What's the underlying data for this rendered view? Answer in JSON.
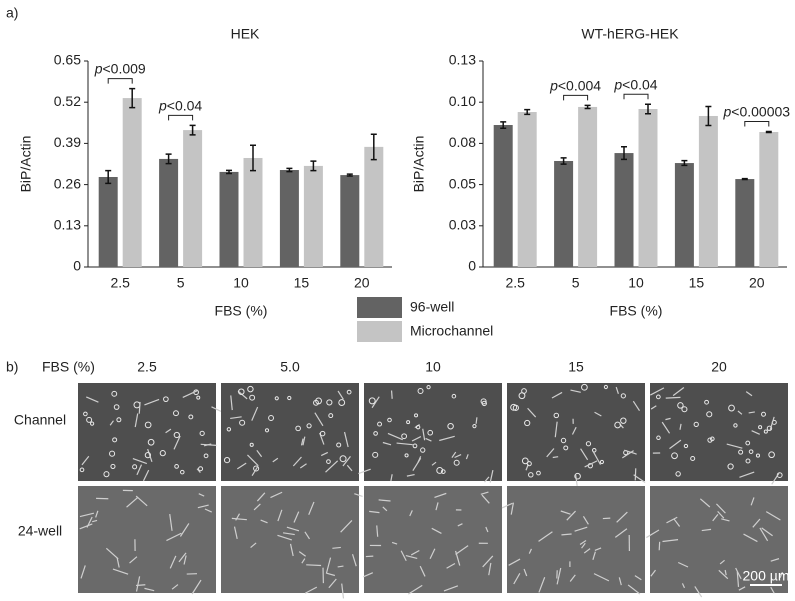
{
  "panel_labels": [
    "a)",
    "b)"
  ],
  "chart_data": [
    {
      "type": "bar",
      "title": "HEK",
      "y_label": "BiP/Actin",
      "x_label": "FBS (%)",
      "categories": [
        "2.5",
        "5",
        "10",
        "15",
        "20"
      ],
      "ylim": [
        0,
        0.65
      ],
      "yticks": [
        0,
        0.13,
        0.26,
        0.39,
        0.52,
        0.65
      ],
      "series": [
        {
          "name": "96-well",
          "color": "#636363",
          "values": [
            0.284,
            0.341,
            0.3,
            0.306,
            0.29
          ],
          "errors": [
            0.02,
            0.015,
            0.005,
            0.005,
            0.003
          ]
        },
        {
          "name": "Microchannel",
          "color": "#c4c4c4",
          "values": [
            0.533,
            0.432,
            0.344,
            0.319,
            0.379
          ],
          "errors": [
            0.03,
            0.015,
            0.04,
            0.015,
            0.04
          ]
        }
      ],
      "annotations": [
        "p<0.009",
        "p<0.04",
        null,
        null,
        null
      ]
    },
    {
      "type": "bar",
      "title": "WT-hERG-HEK",
      "y_label": "BiP/Actin",
      "x_label": "FBS (%)",
      "categories": [
        "2.5",
        "5",
        "10",
        "15",
        "20"
      ],
      "ylim": [
        0,
        0.13
      ],
      "yticks": [
        0,
        {
          "value": 0.026,
          "label": "0.03"
        },
        {
          "value": 0.052,
          "label": "0.05"
        },
        {
          "value": 0.078,
          "label": "0.08"
        },
        {
          "value": 0.104,
          "label": "0.10"
        },
        0.13
      ],
      "series": [
        {
          "color": "#636363",
          "values": [
            0.0896,
            0.0669,
            0.0719,
            0.0656,
            0.0555
          ],
          "errors": [
            0.002,
            0.002,
            0.004,
            0.0015,
            0.0003
          ]
        },
        {
          "color": "#c4c4c4",
          "values": [
            0.0978,
            0.101,
            0.0997,
            0.0953,
            0.0852
          ],
          "errors": [
            0.0015,
            0.001,
            0.003,
            0.006,
            0.0003
          ]
        }
      ],
      "annotations": [
        null,
        "p<0.004",
        "p<0.04",
        null,
        "p<0.00003"
      ]
    }
  ],
  "image_grid": {
    "header": "FBS (%)",
    "columns": [
      "2.5",
      "5.0",
      "10",
      "15",
      "20"
    ],
    "rows": [
      "Channel",
      "24-well"
    ],
    "scale_bar": "200 µm"
  }
}
